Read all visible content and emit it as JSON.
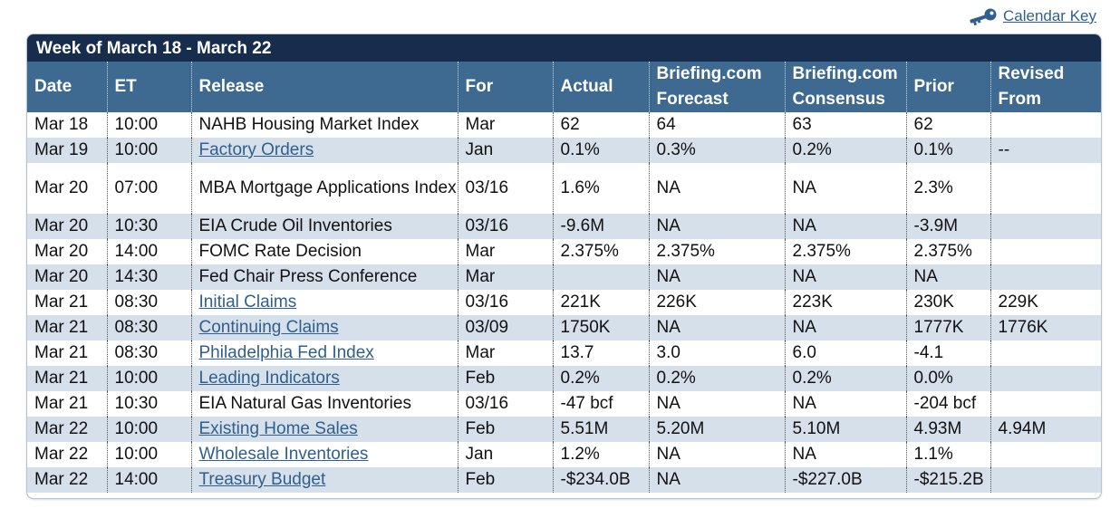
{
  "calendar_key": {
    "label": "Calendar Key",
    "icon": "key-icon"
  },
  "week_title": "Week of March 18 - March 22",
  "colors": {
    "title_bar": "#162d4e",
    "header": "#3e6990",
    "alt_row": "#d6e0ea",
    "link": "#2f5f8f"
  },
  "columns": [
    "Date",
    "ET",
    "Release",
    "For",
    "Actual",
    "Briefing.com Forecast",
    "Briefing.com Consensus",
    "Prior",
    "Revised From"
  ],
  "rows": [
    {
      "date": "Mar 18",
      "et": "10:00",
      "release": "NAHB Housing Market Index",
      "link": false,
      "for": "Mar",
      "actual": "62",
      "forecast": "64",
      "consensus": "63",
      "prior": "62",
      "revised": ""
    },
    {
      "date": "Mar 19",
      "et": "10:00",
      "release": "Factory Orders",
      "link": true,
      "for": "Jan",
      "actual": "0.1%",
      "forecast": "0.3%",
      "consensus": "0.2%",
      "prior": "0.1%",
      "revised": "--"
    },
    {
      "date": "Mar 20",
      "et": "07:00",
      "release": "MBA Mortgage Applications Index",
      "link": false,
      "for": "03/16",
      "actual": "1.6%",
      "forecast": "NA",
      "consensus": "NA",
      "prior": "2.3%",
      "revised": ""
    },
    {
      "date": "Mar 20",
      "et": "10:30",
      "release": "EIA Crude Oil Inventories",
      "link": false,
      "for": "03/16",
      "actual": "-9.6M",
      "forecast": "NA",
      "consensus": "NA",
      "prior": "-3.9M",
      "revised": ""
    },
    {
      "date": "Mar 20",
      "et": "14:00",
      "release": "FOMC Rate Decision",
      "link": false,
      "for": "Mar",
      "actual": "2.375%",
      "forecast": "2.375%",
      "consensus": "2.375%",
      "prior": "2.375%",
      "revised": ""
    },
    {
      "date": "Mar 20",
      "et": "14:30",
      "release": "Fed Chair Press Conference",
      "link": false,
      "for": "Mar",
      "actual": "",
      "forecast": "NA",
      "consensus": "NA",
      "prior": "NA",
      "revised": ""
    },
    {
      "date": "Mar 21",
      "et": "08:30",
      "release": "Initial Claims",
      "link": true,
      "for": "03/16",
      "actual": "221K",
      "forecast": "226K",
      "consensus": "223K",
      "prior": "230K",
      "revised": "229K"
    },
    {
      "date": "Mar 21",
      "et": "08:30",
      "release": "Continuing Claims",
      "link": true,
      "for": "03/09",
      "actual": "1750K",
      "forecast": "NA",
      "consensus": "NA",
      "prior": "1777K",
      "revised": "1776K"
    },
    {
      "date": "Mar 21",
      "et": "08:30",
      "release": "Philadelphia Fed Index",
      "link": true,
      "for": "Mar",
      "actual": "13.7",
      "forecast": "3.0",
      "consensus": "6.0",
      "prior": "-4.1",
      "revised": ""
    },
    {
      "date": "Mar 21",
      "et": "10:00",
      "release": "Leading Indicators",
      "link": true,
      "for": "Feb",
      "actual": "0.2%",
      "forecast": "0.2%",
      "consensus": "0.2%",
      "prior": "0.0%",
      "revised": ""
    },
    {
      "date": "Mar 21",
      "et": "10:30",
      "release": "EIA Natural Gas Inventories",
      "link": false,
      "for": "03/16",
      "actual": "-47 bcf",
      "forecast": "NA",
      "consensus": "NA",
      "prior": "-204 bcf",
      "revised": ""
    },
    {
      "date": "Mar 22",
      "et": "10:00",
      "release": "Existing Home Sales",
      "link": true,
      "for": "Feb",
      "actual": "5.51M",
      "forecast": "5.20M",
      "consensus": "5.10M",
      "prior": "4.93M",
      "revised": "4.94M"
    },
    {
      "date": "Mar 22",
      "et": "10:00",
      "release": "Wholesale Inventories",
      "link": true,
      "for": "Jan",
      "actual": "1.2%",
      "forecast": "NA",
      "consensus": "NA",
      "prior": "1.1%",
      "revised": ""
    },
    {
      "date": "Mar 22",
      "et": "14:00",
      "release": "Treasury Budget",
      "link": true,
      "for": "Feb",
      "actual": "-$234.0B",
      "forecast": "NA",
      "consensus": "-$227.0B",
      "prior": "-$215.2B",
      "revised": ""
    }
  ]
}
